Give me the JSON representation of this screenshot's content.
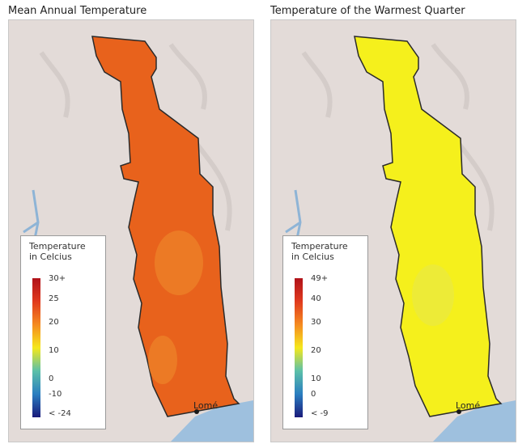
{
  "panels": [
    {
      "title": "Mean Annual Temperature",
      "fill_color": "#e8621c",
      "patch_color": "#ef8a2c",
      "legend": {
        "title_line1": "Temperature",
        "title_line2": "in Celcius",
        "ticks": [
          "30+",
          "25",
          "20",
          "10",
          "0",
          "-10",
          "< -24"
        ],
        "gradient": [
          "#b0121a",
          "#e03a1e",
          "#f58a20",
          "#f5e81c",
          "#5cc0a8",
          "#2a7ec0",
          "#1a1a7a"
        ]
      },
      "city_label": "Lomé"
    },
    {
      "title": "Temperature of the Warmest Quarter",
      "fill_color": "#f5f01c",
      "patch_color": "#e8e84a",
      "legend": {
        "title_line1": "Temperature",
        "title_line2": "in Celcius",
        "ticks": [
          "49+",
          "40",
          "30",
          "20",
          "10",
          "0",
          "< -9"
        ],
        "gradient": [
          "#b0121a",
          "#e03a1e",
          "#f58a20",
          "#f5e81c",
          "#5cc0a8",
          "#2a7ec0",
          "#1a1a7a"
        ]
      },
      "city_label": "Lomé"
    }
  ]
}
